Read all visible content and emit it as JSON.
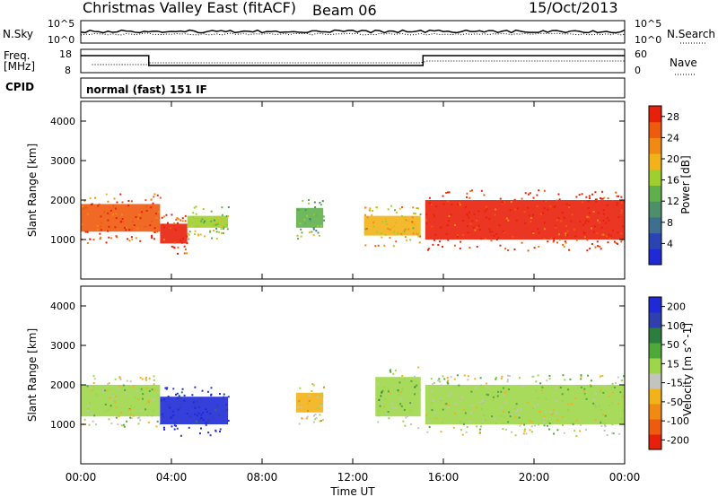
{
  "header": {
    "title": "Christmas Valley East (fitACF)",
    "beam": "Beam 06",
    "date": "15/Oct/2013"
  },
  "strip_noise": {
    "left_label": "N.Sky",
    "right_label": "N.Search",
    "left_ticks": [
      "10^5",
      "10^0"
    ],
    "right_ticks": [
      "10^5",
      "10^0"
    ]
  },
  "strip_freq": {
    "left_label_1": "Freq.",
    "left_label_2": "[MHz]",
    "right_label": "Nave",
    "left_ticks": [
      "18",
      "8"
    ],
    "right_ticks": [
      "60",
      "0"
    ]
  },
  "cpid": {
    "label": "CPID",
    "value": "normal (fast) 151 IF"
  },
  "colors": {
    "frame": "#000000",
    "power_scale": [
      "#1f2ad6",
      "#2a45b3",
      "#3f6f8f",
      "#4d8f6a",
      "#5fb04c",
      "#9fcf2e",
      "#f2b21a",
      "#f08a12",
      "#ee5a0e",
      "#e8200b"
    ],
    "velocity_scale": [
      "#e8200b",
      "#ee5a0e",
      "#f08a12",
      "#f2b21a",
      "#c4c4bf",
      "#9ed64a",
      "#4fa83a",
      "#2b7e3e",
      "#2f3fae",
      "#1f2ad6"
    ]
  },
  "chart_data": [
    {
      "type": "heatmap",
      "name": "power",
      "ylabel": "Slant Range [km]",
      "y_ticks": [
        "1000",
        "2000",
        "3000",
        "4000"
      ],
      "ylim": [
        0,
        4500
      ],
      "colorbar_label": "Power [dB]",
      "colorbar_ticks": [
        "4",
        "8",
        "12",
        "16",
        "20",
        "24",
        "28"
      ],
      "color_range": [
        0,
        30
      ],
      "echo_bands": [
        {
          "t_start": 0.0,
          "t_end": 3.5,
          "range_low": 1200,
          "range_high": 1900,
          "level": 26
        },
        {
          "t_start": 3.5,
          "t_end": 4.7,
          "range_low": 900,
          "range_high": 1400,
          "level": 28
        },
        {
          "t_start": 4.7,
          "t_end": 6.5,
          "range_low": 1300,
          "range_high": 1600,
          "level": 16
        },
        {
          "t_start": 9.5,
          "t_end": 10.7,
          "range_low": 1300,
          "range_high": 1800,
          "level": 14
        },
        {
          "t_start": 12.5,
          "t_end": 15.0,
          "range_low": 1100,
          "range_high": 1600,
          "level": 20
        },
        {
          "t_start": 15.2,
          "t_end": 24.0,
          "range_low": 1000,
          "range_high": 2000,
          "level": 28
        }
      ]
    },
    {
      "type": "heatmap",
      "name": "velocity",
      "ylabel": "Slant Range [km]",
      "y_ticks": [
        "1000",
        "2000",
        "3000",
        "4000"
      ],
      "ylim": [
        0,
        4500
      ],
      "colorbar_label": "Velocity [m s^-1]",
      "colorbar_ticks": [
        "200",
        "100",
        "50",
        "15",
        "-15",
        "-50",
        "-100",
        "-200"
      ],
      "color_range": [
        -250,
        250
      ],
      "echo_bands": [
        {
          "t_start": 0.0,
          "t_end": 3.5,
          "range_low": 1200,
          "range_high": 2000,
          "level": 0
        },
        {
          "t_start": 3.5,
          "t_end": 6.5,
          "range_low": 1000,
          "range_high": 1700,
          "level": 220
        },
        {
          "t_start": 9.5,
          "t_end": 10.7,
          "range_low": 1300,
          "range_high": 1800,
          "level": -60
        },
        {
          "t_start": 13.0,
          "t_end": 15.0,
          "range_low": 1200,
          "range_high": 2200,
          "level": 30
        },
        {
          "t_start": 15.2,
          "t_end": 24.0,
          "range_low": 1000,
          "range_high": 2000,
          "level": 0
        }
      ]
    }
  ],
  "x_axis": {
    "label": "Time UT",
    "ticks": [
      "00:00",
      "04:00",
      "08:00",
      "12:00",
      "16:00",
      "20:00",
      "00:00"
    ]
  }
}
